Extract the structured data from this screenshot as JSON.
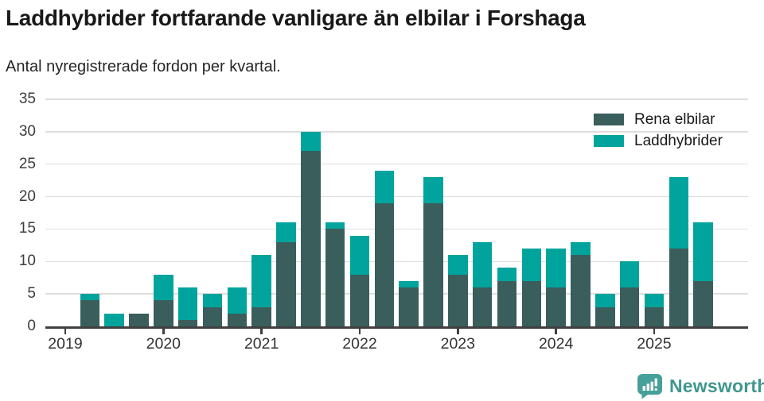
{
  "header": {
    "title": "Laddhybrider fortfarande vanligare än elbilar i Forshaga",
    "subtitle": "Antal nyregistrerade fordon per kvartal."
  },
  "chart_data": {
    "type": "bar",
    "stacked": true,
    "title": "Laddhybrider fortfarande vanligare än elbilar i Forshaga",
    "subtitle": "Antal nyregistrerade fordon per kvartal.",
    "categories": [
      "2019 Q1",
      "2019 Q2",
      "2019 Q3",
      "2019 Q4",
      "2020 Q1",
      "2020 Q2",
      "2020 Q3",
      "2020 Q4",
      "2021 Q1",
      "2021 Q2",
      "2021 Q3",
      "2021 Q4",
      "2022 Q1",
      "2022 Q2",
      "2022 Q3",
      "2022 Q4",
      "2023 Q1",
      "2023 Q2",
      "2023 Q3",
      "2023 Q4",
      "2024 Q1",
      "2024 Q2",
      "2024 Q3",
      "2024 Q4",
      "2025 Q1",
      "2025 Q2",
      "2025 Q3"
    ],
    "series": [
      {
        "name": "Rena elbilar",
        "color": "#395e5b",
        "values": [
          0,
          4,
          0,
          2,
          4,
          1,
          3,
          2,
          3,
          13,
          27,
          15,
          8,
          19,
          6,
          19,
          8,
          6,
          7,
          7,
          6,
          11,
          3,
          6,
          3,
          12,
          7
        ]
      },
      {
        "name": "Laddhybrider",
        "color": "#00a49c",
        "values": [
          0,
          1,
          2,
          0,
          4,
          5,
          2,
          4,
          8,
          3,
          3,
          1,
          6,
          5,
          1,
          4,
          3,
          7,
          2,
          5,
          6,
          2,
          2,
          4,
          2,
          11,
          9
        ]
      }
    ],
    "totals": [
      0,
      5,
      2,
      2,
      8,
      6,
      5,
      6,
      11,
      16,
      30,
      16,
      14,
      24,
      7,
      23,
      11,
      13,
      9,
      12,
      12,
      13,
      5,
      10,
      5,
      23,
      16
    ],
    "ylim": [
      0,
      35
    ],
    "yticks": [
      0,
      5,
      10,
      15,
      20,
      25,
      30,
      35
    ],
    "x_year_labels": [
      "2019",
      "2020",
      "2021",
      "2022",
      "2023",
      "2024",
      "2025"
    ],
    "grid": "horizontal",
    "legend_position": "top-right",
    "xlabel": "",
    "ylabel": ""
  },
  "colors": {
    "series_dark": "#395e5b",
    "series_teal": "#00a49c",
    "gridline": "#dedede",
    "axis": "#404040",
    "logo_teal": "#45a09a",
    "logo_text": "#3f978f"
  },
  "footer": {
    "brand": "Newsworthy"
  }
}
